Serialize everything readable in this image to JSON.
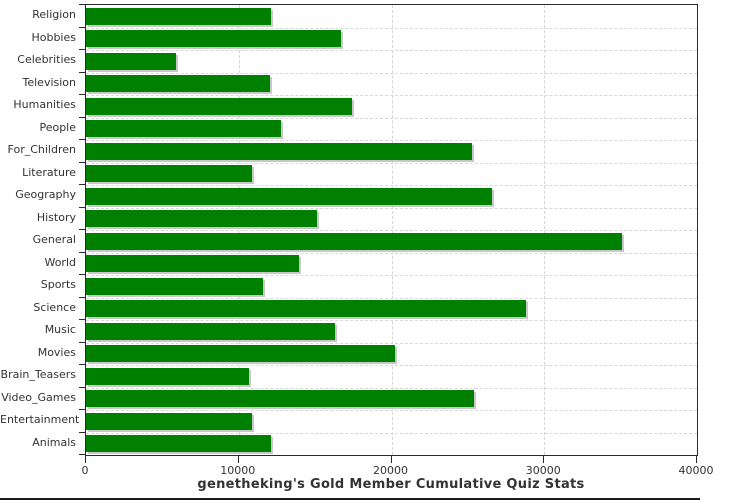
{
  "chart_data": {
    "type": "bar",
    "orientation": "horizontal",
    "title": "genetheking's Gold Member Cumulative Quiz Stats",
    "categories": [
      "Religion",
      "Hobbies",
      "Celebrities",
      "Television",
      "Humanities",
      "People",
      "For_Children",
      "Literature",
      "Geography",
      "History",
      "General",
      "World",
      "Sports",
      "Science",
      "Music",
      "Movies",
      "Brain_Teasers",
      "Video_Games",
      "Entertainment",
      "Animals"
    ],
    "values": [
      12100,
      16700,
      5900,
      12050,
      17400,
      12750,
      25250,
      10900,
      26600,
      15150,
      35100,
      13950,
      11600,
      28800,
      16300,
      20200,
      10650,
      25400,
      10850,
      12100
    ],
    "xlim": [
      0,
      40000
    ],
    "x_ticks": [
      0,
      10000,
      20000,
      30000,
      40000
    ],
    "x_tick_labels": [
      "0",
      "10000",
      "20000",
      "30000",
      "40000"
    ],
    "xlabel": "",
    "ylabel": "",
    "legend": "none",
    "grid": "dashed",
    "bar_color": "#008000",
    "bar_shadow_color": "#c8c8c8",
    "axis_color": "#2a2a2a",
    "text_color": "#333333",
    "background_color": "#ffffff"
  }
}
